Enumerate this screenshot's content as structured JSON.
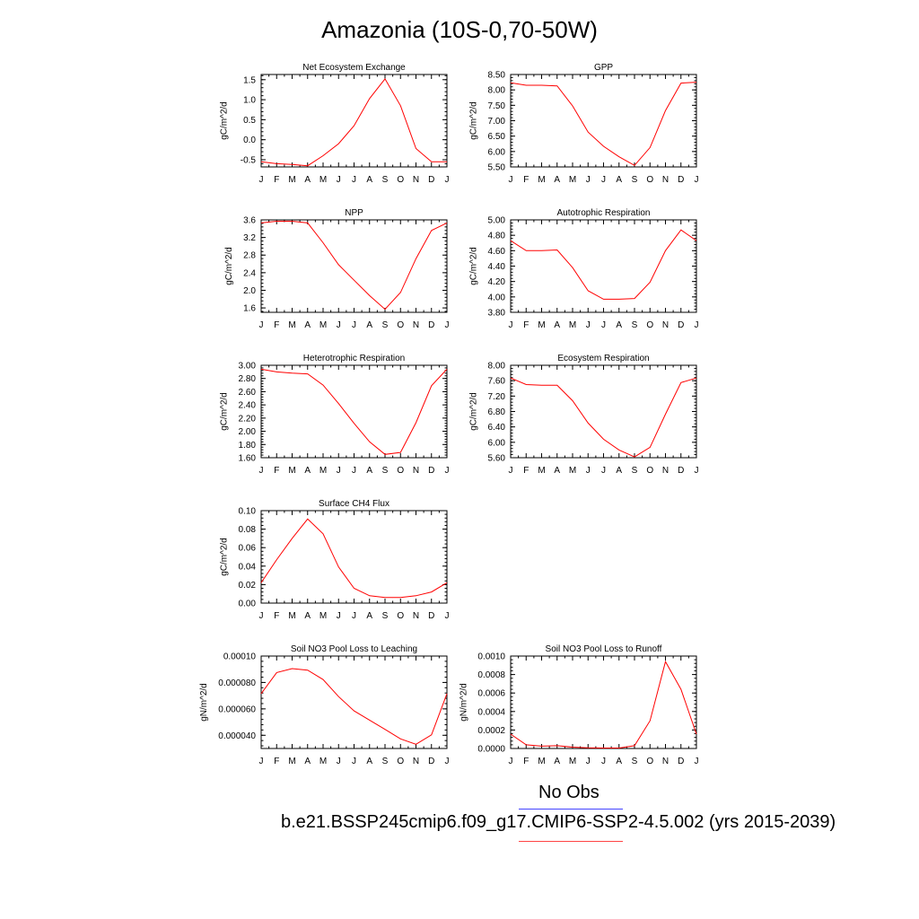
{
  "title": "Amazonia (10S-0,70-50W)",
  "legend": {
    "obs_label": "No Obs",
    "case_label": "b.e21.BSSP245cmip6.f09_g17.CMIP6-SSP2-4.5.002 (yrs 2015-2039)",
    "obs_color": "#4444ff",
    "case_color": "#ff4444"
  },
  "chart_data": [
    {
      "type": "line",
      "title": "Net Ecosystem Exchange",
      "ylabel": "gC/m^2/d",
      "x": [
        "J",
        "F",
        "M",
        "A",
        "M",
        "J",
        "J",
        "A",
        "S",
        "O",
        "N",
        "D",
        "J"
      ],
      "ylim": [
        -0.68,
        1.63
      ],
      "yticks": [
        -0.5,
        0.0,
        0.5,
        1.0,
        1.5
      ],
      "ytick_labels": [
        "-0.5",
        "0.0",
        "0.5",
        "1.0",
        "1.5"
      ],
      "series": [
        {
          "color": "#ff0000",
          "values": [
            -0.55,
            -0.6,
            -0.62,
            -0.65,
            -0.4,
            -0.1,
            0.35,
            1.03,
            1.52,
            0.85,
            -0.22,
            -0.55,
            -0.55
          ]
        }
      ]
    },
    {
      "type": "line",
      "title": "GPP",
      "ylabel": "gC/m^2/d",
      "x": [
        "J",
        "F",
        "M",
        "A",
        "M",
        "J",
        "J",
        "A",
        "S",
        "O",
        "N",
        "D",
        "J"
      ],
      "ylim": [
        5.5,
        8.5
      ],
      "yticks": [
        5.5,
        6.0,
        6.5,
        7.0,
        7.5,
        8.0,
        8.5
      ],
      "ytick_labels": [
        "5.50",
        "6.00",
        "6.50",
        "7.00",
        "7.50",
        "8.00",
        "8.50"
      ],
      "series": [
        {
          "color": "#ff0000",
          "values": [
            8.23,
            8.15,
            8.15,
            8.13,
            7.48,
            6.63,
            6.17,
            5.83,
            5.55,
            6.13,
            7.33,
            8.22,
            8.25
          ]
        }
      ]
    },
    {
      "type": "line",
      "title": "NPP",
      "ylabel": "gC/m^2/d",
      "x": [
        "J",
        "F",
        "M",
        "A",
        "M",
        "J",
        "J",
        "A",
        "S",
        "O",
        "N",
        "D",
        "J"
      ],
      "ylim": [
        1.5,
        3.6
      ],
      "yticks": [
        1.6,
        2.0,
        2.4,
        2.8,
        3.2,
        3.6
      ],
      "ytick_labels": [
        "1.6",
        "2.0",
        "2.4",
        "2.8",
        "3.2",
        "3.6"
      ],
      "series": [
        {
          "color": "#ff0000",
          "values": [
            3.53,
            3.57,
            3.57,
            3.53,
            3.08,
            2.58,
            2.23,
            1.88,
            1.57,
            1.95,
            2.72,
            3.36,
            3.53
          ]
        }
      ]
    },
    {
      "type": "line",
      "title": "Autotrophic Respiration",
      "ylabel": "gC/m^2/d",
      "x": [
        "J",
        "F",
        "M",
        "A",
        "M",
        "J",
        "J",
        "A",
        "S",
        "O",
        "N",
        "D",
        "J"
      ],
      "ylim": [
        3.8,
        5.0
      ],
      "yticks": [
        3.8,
        4.0,
        4.2,
        4.4,
        4.6,
        4.8,
        5.0
      ],
      "ytick_labels": [
        "3.80",
        "4.00",
        "4.20",
        "4.40",
        "4.60",
        "4.80",
        "5.00"
      ],
      "series": [
        {
          "color": "#ff0000",
          "values": [
            4.73,
            4.6,
            4.6,
            4.61,
            4.38,
            4.08,
            3.97,
            3.97,
            3.98,
            4.19,
            4.6,
            4.87,
            4.73
          ]
        }
      ]
    },
    {
      "type": "line",
      "title": "Heterotrophic Respiration",
      "ylabel": "gC/m^2/d",
      "x": [
        "J",
        "F",
        "M",
        "A",
        "M",
        "J",
        "J",
        "A",
        "S",
        "O",
        "N",
        "D",
        "J"
      ],
      "ylim": [
        1.6,
        3.0
      ],
      "yticks": [
        1.6,
        1.8,
        2.0,
        2.2,
        2.4,
        2.6,
        2.8,
        3.0
      ],
      "ytick_labels": [
        "1.60",
        "1.80",
        "2.00",
        "2.20",
        "2.40",
        "2.60",
        "2.80",
        "3.00"
      ],
      "series": [
        {
          "color": "#ff0000",
          "values": [
            2.94,
            2.9,
            2.88,
            2.87,
            2.7,
            2.42,
            2.12,
            1.84,
            1.65,
            1.68,
            2.13,
            2.69,
            2.94
          ]
        }
      ]
    },
    {
      "type": "line",
      "title": "Ecosystem Respiration",
      "ylabel": "gC/m^2/d",
      "x": [
        "J",
        "F",
        "M",
        "A",
        "M",
        "J",
        "J",
        "A",
        "S",
        "O",
        "N",
        "D",
        "J"
      ],
      "ylim": [
        5.6,
        8.0
      ],
      "yticks": [
        5.6,
        6.0,
        6.4,
        6.8,
        7.2,
        7.6,
        8.0
      ],
      "ytick_labels": [
        "5.60",
        "6.00",
        "6.40",
        "6.80",
        "7.20",
        "7.60",
        "8.00"
      ],
      "series": [
        {
          "color": "#ff0000",
          "values": [
            7.67,
            7.5,
            7.48,
            7.48,
            7.08,
            6.5,
            6.08,
            5.8,
            5.62,
            5.87,
            6.73,
            7.55,
            7.67
          ]
        }
      ]
    },
    {
      "type": "line",
      "title": "Surface CH4 Flux",
      "ylabel": "gC/m^2/d",
      "x": [
        "J",
        "F",
        "M",
        "A",
        "M",
        "J",
        "J",
        "A",
        "S",
        "O",
        "N",
        "D",
        "J"
      ],
      "ylim": [
        0.0,
        0.1
      ],
      "yticks": [
        0.0,
        0.02,
        0.04,
        0.06,
        0.08,
        0.1
      ],
      "ytick_labels": [
        "0.00",
        "0.02",
        "0.04",
        "0.06",
        "0.08",
        "0.10"
      ],
      "series": [
        {
          "color": "#ff0000",
          "values": [
            0.022,
            0.047,
            0.07,
            0.091,
            0.075,
            0.039,
            0.016,
            0.008,
            0.006,
            0.006,
            0.008,
            0.012,
            0.022
          ]
        }
      ]
    },
    {
      "type": "line",
      "title": "Soil NO3 Pool Loss to Leaching",
      "ylabel": "gN/m^2/d",
      "x": [
        "J",
        "F",
        "M",
        "A",
        "M",
        "J",
        "J",
        "A",
        "S",
        "O",
        "N",
        "D",
        "J"
      ],
      "ylim": [
        3e-05,
        0.0001
      ],
      "yticks": [
        4e-05,
        6e-05,
        8e-05,
        0.0001
      ],
      "ytick_labels": [
        "0.000040",
        "0.000060",
        "0.000080",
        "0.00010"
      ],
      "series": [
        {
          "color": "#ff0000",
          "values": [
            7.15e-05,
            8.75e-05,
            9.05e-05,
            8.93e-05,
            8.22e-05,
            6.93e-05,
            5.85e-05,
            5.15e-05,
            4.45e-05,
            3.73e-05,
            3.32e-05,
            4.03e-05,
            7.15e-05
          ]
        }
      ]
    },
    {
      "type": "line",
      "title": "Soil NO3 Pool Loss to Runoff",
      "ylabel": "gN/m^2/d",
      "x": [
        "J",
        "F",
        "M",
        "A",
        "M",
        "J",
        "J",
        "A",
        "S",
        "O",
        "N",
        "D",
        "J"
      ],
      "ylim": [
        0.0,
        0.001
      ],
      "yticks": [
        0.0,
        0.0002,
        0.0004,
        0.0006,
        0.0008,
        0.001
      ],
      "ytick_labels": [
        "0.0000",
        "0.0002",
        "0.0004",
        "0.0006",
        "0.0008",
        "0.0010"
      ],
      "series": [
        {
          "color": "#ff0000",
          "values": [
            0.000155,
            4e-05,
            2.5e-05,
            3e-05,
            1.5e-05,
            8e-06,
            5e-06,
            5e-06,
            3e-05,
            0.0003,
            0.00094,
            0.00064,
            0.000155
          ]
        }
      ]
    }
  ]
}
